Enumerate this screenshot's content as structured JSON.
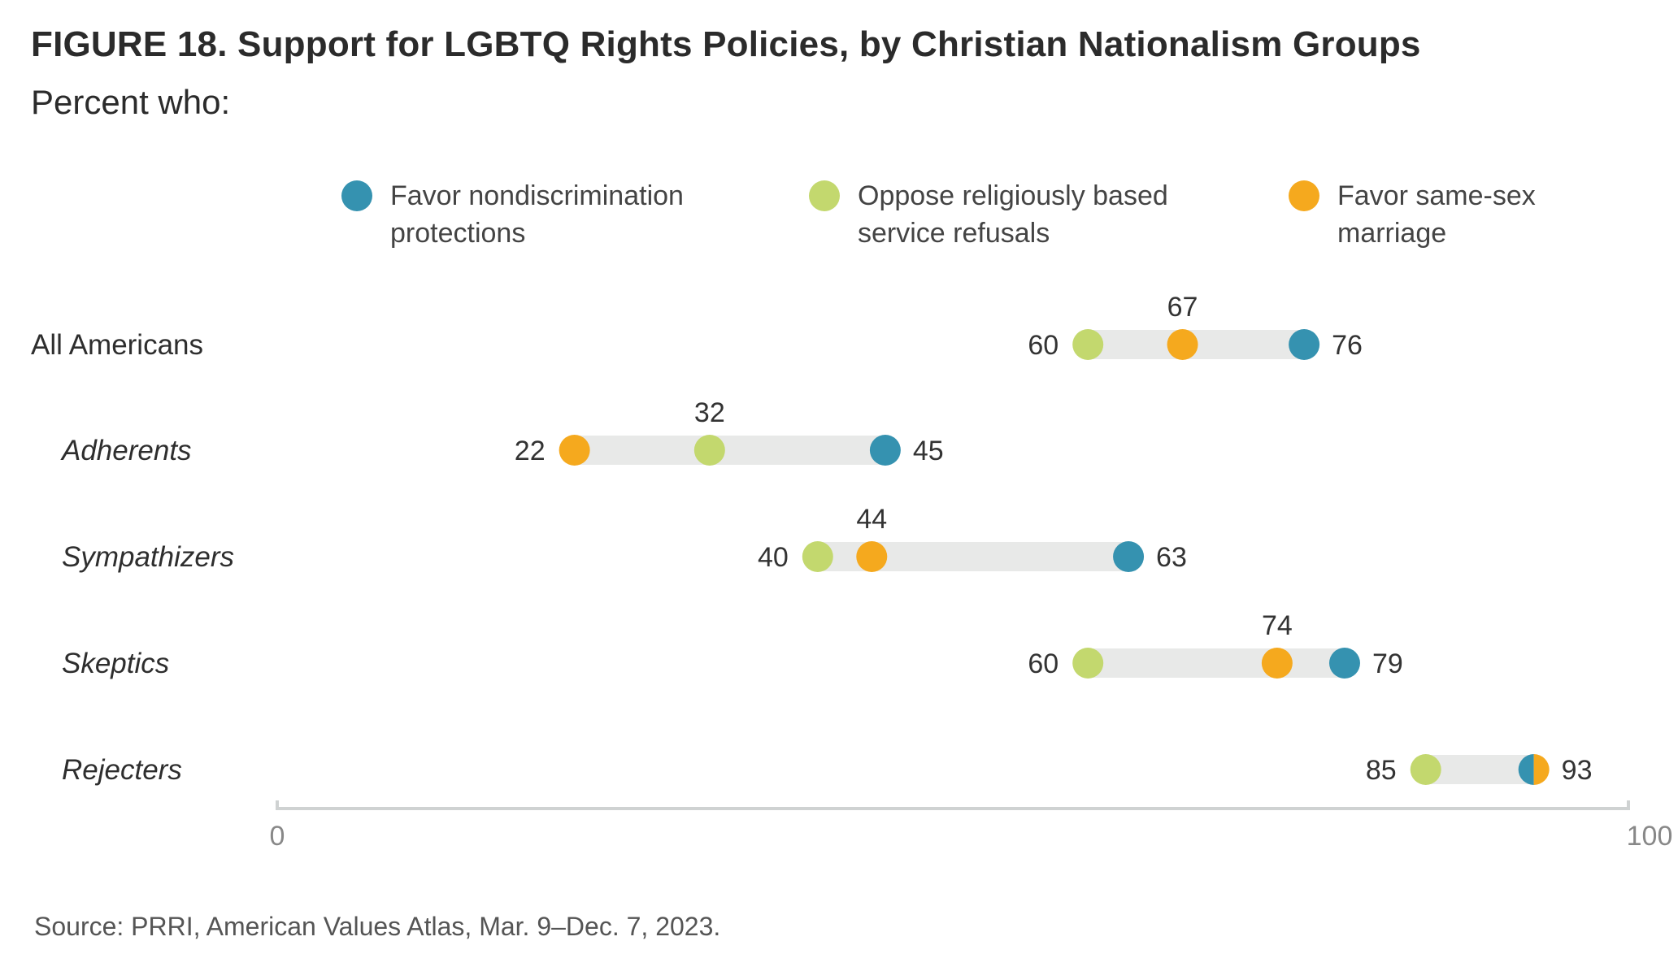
{
  "title": "FIGURE 18.  Support for LGBTQ Rights Policies, by Christian Nationalism Groups",
  "subtitle": "Percent who:",
  "source": "Source: PRRI, American Values Atlas, Mar. 9–Dec. 7, 2023.",
  "colors": {
    "nondiscrimination": "#3592b0",
    "service_refusals": "#c3d86e",
    "same_sex_marriage": "#f5a91e",
    "track": "#e8e9e8",
    "axis": "#cfd2d2"
  },
  "legend": [
    {
      "label": "Favor nondiscrimination protections",
      "color_key": "nondiscrimination"
    },
    {
      "label": "Oppose religiously based service refusals",
      "color_key": "service_refusals"
    },
    {
      "label": "Favor same-sex marriage",
      "color_key": "same_sex_marriage"
    }
  ],
  "chart_data": {
    "type": "dot-range",
    "xlim": [
      0,
      100
    ],
    "x_ticks": [
      "0",
      "100"
    ],
    "categories": [
      "All Americans",
      "Adherents",
      "Sympathizers",
      "Skeptics",
      "Rejecters"
    ],
    "category_italic": [
      false,
      true,
      true,
      true,
      true
    ],
    "series": [
      {
        "name": "Favor nondiscrimination protections",
        "color_key": "nondiscrimination",
        "values": [
          76,
          45,
          63,
          79,
          93
        ]
      },
      {
        "name": "Oppose religiously based service refusals",
        "color_key": "service_refusals",
        "values": [
          60,
          32,
          40,
          60,
          85
        ]
      },
      {
        "name": "Favor same-sex marriage",
        "color_key": "same_sex_marriage",
        "values": [
          67,
          22,
          44,
          74,
          93
        ]
      }
    ],
    "grid": false,
    "legend_position": "top"
  }
}
